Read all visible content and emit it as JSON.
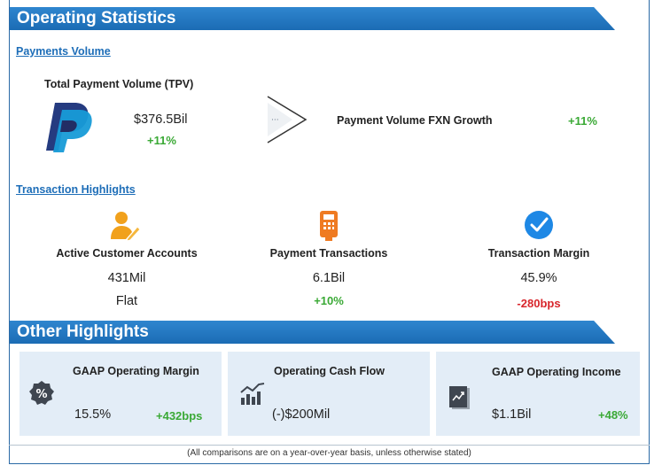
{
  "sections": {
    "operating_statistics": "Operating Statistics",
    "other_highlights": "Other Highlights"
  },
  "payments_volume": {
    "heading": "Payments Volume",
    "tpv_label": "Total Payment Volume (TPV)",
    "tpv_value": "$376.5Bil",
    "tpv_change": "+11%",
    "fxn_label": "Payment Volume FXN Growth",
    "fxn_change": "+11%",
    "logo_icon": "paypal-logo-icon",
    "arrow_icon": "chevron-arrow-icon"
  },
  "transaction_highlights": {
    "heading": "Transaction Highlights",
    "items": [
      {
        "label": "Active Customer Accounts",
        "value": "431Mil",
        "change": "Flat",
        "icon": "user-pen-icon"
      },
      {
        "label": "Payment Transactions",
        "value": "6.1Bil",
        "change": "+10%",
        "icon": "card-terminal-icon"
      },
      {
        "label": "Transaction Margin",
        "value": "45.9%",
        "change": "-280bps",
        "icon": "check-badge-icon"
      }
    ]
  },
  "other_highlights": {
    "cards": [
      {
        "title": "GAAP Operating Margin",
        "value": "15.5%",
        "change": "+432bps",
        "icon": "percent-badge-icon"
      },
      {
        "title": "Operating Cash Flow",
        "value": "(-)$200Mil",
        "change": "",
        "icon": "growth-chart-icon"
      },
      {
        "title": "GAAP Operating Income",
        "value": "$1.1Bil",
        "change": "+48%",
        "icon": "trend-document-icon"
      }
    ]
  },
  "footer": "(All comparisons are on a year-over-year basis, unless otherwise stated)",
  "colors": {
    "banner": "#1b6cb4",
    "link": "#1e6eb8",
    "positive": "#3aa935",
    "negative": "#d8262c",
    "card": "#e3edf7"
  }
}
